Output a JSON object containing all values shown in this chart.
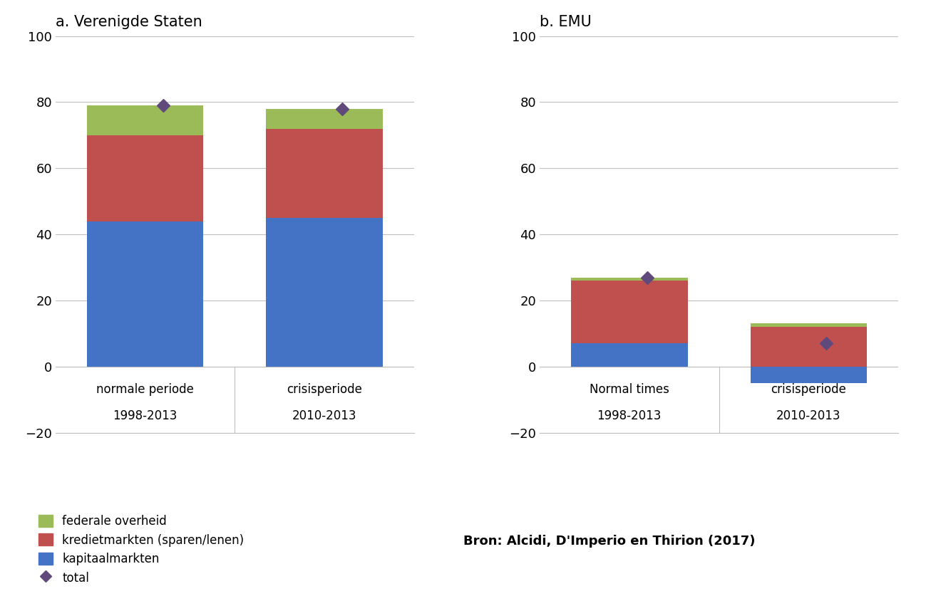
{
  "panel_a_title": "a. Verenigde Staten",
  "panel_b_title": "b. EMU",
  "categories_a_line1": [
    "normale periode",
    "crisisperiode"
  ],
  "categories_a_line2": [
    "1998-2013",
    "2010-2013"
  ],
  "categories_b_line1": [
    "Normal times",
    "crisisperiode"
  ],
  "categories_b_line2": [
    "1998-2013",
    "2010-2013"
  ],
  "a_kapitaal": [
    44,
    45
  ],
  "a_krediet": [
    26,
    27
  ],
  "a_federaal": [
    9,
    6
  ],
  "a_total": [
    79,
    78
  ],
  "b_kapitaal": [
    7,
    -5
  ],
  "b_krediet": [
    19,
    12
  ],
  "b_federaal": [
    1,
    1
  ],
  "b_total": [
    27,
    7
  ],
  "color_kapitaal": "#4472C4",
  "color_krediet": "#C0504D",
  "color_federaal": "#9BBB59",
  "color_total": "#604A7B",
  "ylim": [
    -20,
    100
  ],
  "yticks": [
    -20,
    0,
    20,
    40,
    60,
    80,
    100
  ],
  "bar_width": 0.65,
  "source_text": "Bron: Alcidi, D'Imperio en Thirion (2017)",
  "legend_labels": [
    "federale overheid",
    "kredietmarkten (sparen/lenen)",
    "kapitaalmarkten",
    "total"
  ],
  "background_color": "#FFFFFF",
  "grid_color": "#BFBFBF"
}
